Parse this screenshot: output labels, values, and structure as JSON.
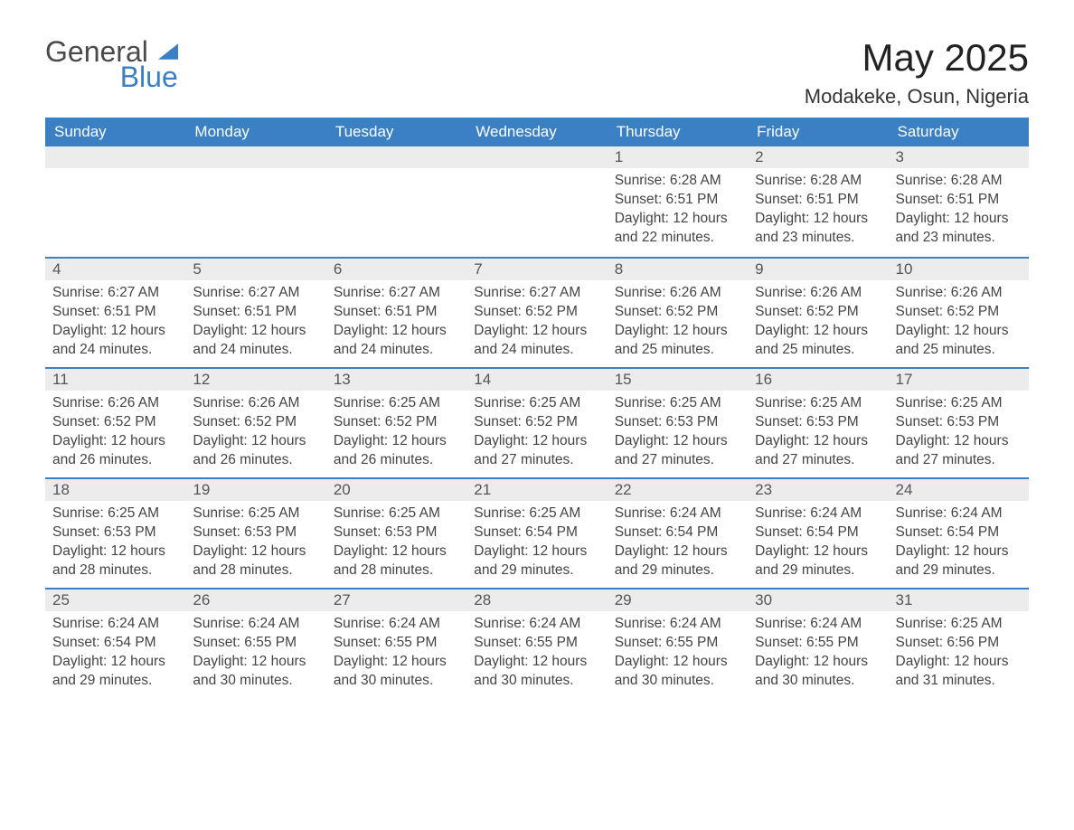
{
  "logo": {
    "text1": "General",
    "text2": "Blue"
  },
  "title": "May 2025",
  "location": "Modakeke, Osun, Nigeria",
  "colors": {
    "header_bg": "#3b7fc4",
    "row_bg": "#ececec",
    "border": "#3b7fc4"
  },
  "day_labels": [
    "Sunday",
    "Monday",
    "Tuesday",
    "Wednesday",
    "Thursday",
    "Friday",
    "Saturday"
  ],
  "weeks": [
    [
      null,
      null,
      null,
      null,
      {
        "n": "1",
        "sr": "6:28 AM",
        "ss": "6:51 PM",
        "dl": "12 hours and 22 minutes."
      },
      {
        "n": "2",
        "sr": "6:28 AM",
        "ss": "6:51 PM",
        "dl": "12 hours and 23 minutes."
      },
      {
        "n": "3",
        "sr": "6:28 AM",
        "ss": "6:51 PM",
        "dl": "12 hours and 23 minutes."
      }
    ],
    [
      {
        "n": "4",
        "sr": "6:27 AM",
        "ss": "6:51 PM",
        "dl": "12 hours and 24 minutes."
      },
      {
        "n": "5",
        "sr": "6:27 AM",
        "ss": "6:51 PM",
        "dl": "12 hours and 24 minutes."
      },
      {
        "n": "6",
        "sr": "6:27 AM",
        "ss": "6:51 PM",
        "dl": "12 hours and 24 minutes."
      },
      {
        "n": "7",
        "sr": "6:27 AM",
        "ss": "6:52 PM",
        "dl": "12 hours and 24 minutes."
      },
      {
        "n": "8",
        "sr": "6:26 AM",
        "ss": "6:52 PM",
        "dl": "12 hours and 25 minutes."
      },
      {
        "n": "9",
        "sr": "6:26 AM",
        "ss": "6:52 PM",
        "dl": "12 hours and 25 minutes."
      },
      {
        "n": "10",
        "sr": "6:26 AM",
        "ss": "6:52 PM",
        "dl": "12 hours and 25 minutes."
      }
    ],
    [
      {
        "n": "11",
        "sr": "6:26 AM",
        "ss": "6:52 PM",
        "dl": "12 hours and 26 minutes."
      },
      {
        "n": "12",
        "sr": "6:26 AM",
        "ss": "6:52 PM",
        "dl": "12 hours and 26 minutes."
      },
      {
        "n": "13",
        "sr": "6:25 AM",
        "ss": "6:52 PM",
        "dl": "12 hours and 26 minutes."
      },
      {
        "n": "14",
        "sr": "6:25 AM",
        "ss": "6:52 PM",
        "dl": "12 hours and 27 minutes."
      },
      {
        "n": "15",
        "sr": "6:25 AM",
        "ss": "6:53 PM",
        "dl": "12 hours and 27 minutes."
      },
      {
        "n": "16",
        "sr": "6:25 AM",
        "ss": "6:53 PM",
        "dl": "12 hours and 27 minutes."
      },
      {
        "n": "17",
        "sr": "6:25 AM",
        "ss": "6:53 PM",
        "dl": "12 hours and 27 minutes."
      }
    ],
    [
      {
        "n": "18",
        "sr": "6:25 AM",
        "ss": "6:53 PM",
        "dl": "12 hours and 28 minutes."
      },
      {
        "n": "19",
        "sr": "6:25 AM",
        "ss": "6:53 PM",
        "dl": "12 hours and 28 minutes."
      },
      {
        "n": "20",
        "sr": "6:25 AM",
        "ss": "6:53 PM",
        "dl": "12 hours and 28 minutes."
      },
      {
        "n": "21",
        "sr": "6:25 AM",
        "ss": "6:54 PM",
        "dl": "12 hours and 29 minutes."
      },
      {
        "n": "22",
        "sr": "6:24 AM",
        "ss": "6:54 PM",
        "dl": "12 hours and 29 minutes."
      },
      {
        "n": "23",
        "sr": "6:24 AM",
        "ss": "6:54 PM",
        "dl": "12 hours and 29 minutes."
      },
      {
        "n": "24",
        "sr": "6:24 AM",
        "ss": "6:54 PM",
        "dl": "12 hours and 29 minutes."
      }
    ],
    [
      {
        "n": "25",
        "sr": "6:24 AM",
        "ss": "6:54 PM",
        "dl": "12 hours and 29 minutes."
      },
      {
        "n": "26",
        "sr": "6:24 AM",
        "ss": "6:55 PM",
        "dl": "12 hours and 30 minutes."
      },
      {
        "n": "27",
        "sr": "6:24 AM",
        "ss": "6:55 PM",
        "dl": "12 hours and 30 minutes."
      },
      {
        "n": "28",
        "sr": "6:24 AM",
        "ss": "6:55 PM",
        "dl": "12 hours and 30 minutes."
      },
      {
        "n": "29",
        "sr": "6:24 AM",
        "ss": "6:55 PM",
        "dl": "12 hours and 30 minutes."
      },
      {
        "n": "30",
        "sr": "6:24 AM",
        "ss": "6:55 PM",
        "dl": "12 hours and 30 minutes."
      },
      {
        "n": "31",
        "sr": "6:25 AM",
        "ss": "6:56 PM",
        "dl": "12 hours and 31 minutes."
      }
    ]
  ],
  "labels": {
    "sunrise": "Sunrise: ",
    "sunset": "Sunset: ",
    "daylight": "Daylight: "
  }
}
